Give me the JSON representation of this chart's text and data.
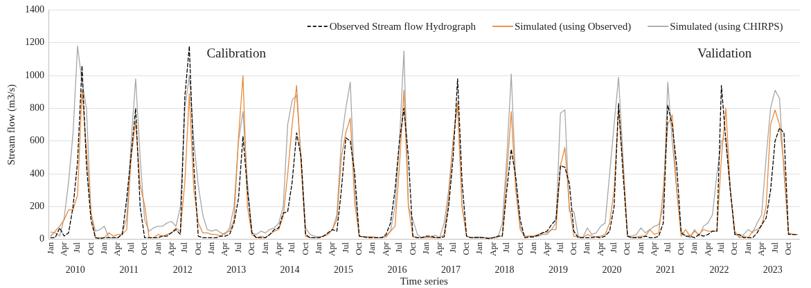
{
  "chart_data": {
    "type": "line",
    "ylabel": "Stream flow (m3/s)",
    "xlabel": "Time series",
    "ylim": [
      0,
      1400
    ],
    "yticks": [
      0,
      200,
      400,
      600,
      800,
      1000,
      1200,
      1400
    ],
    "grid": "y",
    "legend": "top right",
    "categories": [
      "Jan",
      null,
      null,
      "Apr",
      null,
      null,
      "Jul",
      null,
      null,
      "Oct",
      null,
      null,
      "Jan",
      null,
      null,
      "Apr",
      null,
      null,
      "Jul",
      null,
      null,
      "Oct",
      null,
      null,
      "Jan",
      null,
      null,
      "Apr",
      null,
      null,
      "Jul",
      null,
      null,
      "Oct",
      null,
      null,
      "Jan",
      null,
      null,
      "Apr",
      null,
      null,
      "Jul",
      null,
      null,
      "Oct",
      null,
      null,
      "Jan",
      null,
      null,
      "Apr",
      null,
      null,
      "Jul",
      null,
      null,
      "Oct",
      null,
      null,
      "Jan",
      null,
      null,
      "Apr",
      null,
      null,
      "Jul",
      null,
      null,
      "Oct",
      null,
      null,
      "Jan",
      null,
      null,
      "Apr",
      null,
      null,
      "Jul",
      null,
      null,
      "Oct",
      null,
      null,
      "Jan",
      null,
      null,
      "Apr",
      null,
      null,
      "Jul",
      null,
      null,
      "Oct",
      null,
      null,
      "Jan",
      null,
      null,
      "Apr",
      null,
      null,
      "Jul",
      null,
      null,
      "Oct",
      null,
      null,
      "Jan",
      null,
      null,
      "Apr",
      null,
      null,
      "Jul",
      null,
      null,
      "Oct",
      null,
      null,
      "Jan",
      null,
      null,
      "Apr",
      null,
      null,
      "Jul",
      null,
      null,
      "Oct",
      null,
      null,
      "Jan",
      null,
      null,
      "Apr",
      null,
      null,
      "Jul",
      null,
      null,
      "Oct",
      null,
      null,
      "Jan",
      null,
      null,
      "Apr",
      null,
      null,
      "Jul",
      null,
      null,
      "Oct",
      null,
      null,
      "Jan",
      null,
      null,
      "Apr",
      null,
      null,
      "Jul",
      null,
      null,
      "Oct",
      null,
      null
    ],
    "annotations": [
      "Calibration",
      "Validation",
      "2010",
      "2011",
      "2012",
      "2013",
      "2014",
      "2015",
      "2016",
      "2017",
      "2018",
      "2019",
      "2020",
      "2021",
      "2022",
      "2023"
    ],
    "series": [
      {
        "name": "Observed Stream flow Hydrograph",
        "color": "#000000",
        "line_style": "dashed",
        "values": [
          10,
          10,
          70,
          20,
          40,
          200,
          470,
          1060,
          450,
          120,
          10,
          5,
          10,
          10,
          10,
          10,
          30,
          250,
          520,
          800,
          200,
          10,
          10,
          10,
          10,
          20,
          20,
          40,
          60,
          30,
          870,
          1180,
          450,
          20,
          10,
          10,
          10,
          10,
          20,
          20,
          30,
          100,
          250,
          630,
          300,
          40,
          10,
          10,
          10,
          30,
          60,
          70,
          160,
          170,
          350,
          650,
          500,
          30,
          10,
          10,
          10,
          20,
          40,
          60,
          50,
          300,
          620,
          600,
          400,
          20,
          15,
          10,
          10,
          10,
          10,
          30,
          100,
          300,
          600,
          800,
          500,
          20,
          10,
          10,
          20,
          20,
          10,
          10,
          15,
          200,
          500,
          980,
          350,
          20,
          10,
          10,
          10,
          10,
          5,
          10,
          20,
          20,
          300,
          550,
          380,
          120,
          10,
          15,
          15,
          25,
          40,
          50,
          90,
          120,
          450,
          440,
          340,
          50,
          10,
          10,
          10,
          10,
          15,
          10,
          20,
          50,
          200,
          830,
          400,
          20,
          10,
          10,
          10,
          20,
          10,
          10,
          20,
          100,
          820,
          700,
          450,
          40,
          20,
          20,
          10,
          30,
          20,
          30,
          50,
          50,
          940,
          600,
          300,
          30,
          30,
          10,
          10,
          10,
          40,
          90,
          130,
          300,
          600,
          680,
          650,
          30,
          30,
          30
        ]
      },
      {
        "name": "Simulated (using Observed)",
        "color": "#e8893a",
        "line_style": "solid",
        "values": [
          20,
          50,
          80,
          120,
          180,
          180,
          270,
          910,
          550,
          170,
          10,
          10,
          10,
          40,
          20,
          30,
          30,
          60,
          500,
          720,
          330,
          210,
          10,
          10,
          30,
          20,
          30,
          40,
          70,
          50,
          350,
          890,
          300,
          100,
          40,
          40,
          30,
          30,
          20,
          40,
          50,
          120,
          620,
          1000,
          200,
          30,
          10,
          20,
          10,
          30,
          50,
          60,
          140,
          400,
          700,
          940,
          450,
          20,
          10,
          10,
          10,
          20,
          30,
          60,
          120,
          500,
          650,
          740,
          220,
          20,
          15,
          15,
          15,
          10,
          10,
          15,
          50,
          80,
          450,
          910,
          200,
          15,
          10,
          10,
          15,
          10,
          10,
          10,
          30,
          250,
          600,
          840,
          200,
          20,
          10,
          10,
          10,
          10,
          5,
          10,
          20,
          20,
          400,
          780,
          300,
          60,
          15,
          20,
          20,
          30,
          40,
          40,
          60,
          60,
          450,
          560,
          200,
          20,
          15,
          10,
          30,
          20,
          15,
          20,
          30,
          100,
          300,
          800,
          450,
          20,
          10,
          15,
          20,
          20,
          60,
          30,
          40,
          300,
          700,
          760,
          300,
          20,
          60,
          20,
          50,
          30,
          60,
          50,
          50,
          50,
          500,
          800,
          300,
          50,
          10,
          20,
          10,
          50,
          60,
          80,
          200,
          700,
          790,
          700,
          450,
          40,
          30,
          30
        ]
      },
      {
        "name": "Simulated (using CHIRPS)",
        "color": "#a6a6a6",
        "line_style": "solid",
        "values": [
          45,
          40,
          20,
          130,
          350,
          650,
          1180,
          960,
          800,
          160,
          50,
          60,
          80,
          10,
          10,
          10,
          40,
          130,
          600,
          980,
          500,
          120,
          50,
          70,
          80,
          80,
          100,
          110,
          80,
          200,
          800,
          1000,
          600,
          330,
          150,
          60,
          50,
          60,
          40,
          30,
          70,
          200,
          600,
          780,
          350,
          40,
          30,
          50,
          40,
          60,
          70,
          100,
          200,
          700,
          850,
          880,
          500,
          70,
          30,
          20,
          15,
          20,
          30,
          60,
          150,
          600,
          800,
          960,
          300,
          20,
          15,
          15,
          15,
          10,
          10,
          20,
          50,
          200,
          600,
          1150,
          200,
          120,
          30,
          10,
          10,
          15,
          25,
          10,
          100,
          300,
          600,
          820,
          200,
          20,
          10,
          15,
          15,
          10,
          10,
          10,
          10,
          100,
          500,
          1010,
          350,
          80,
          20,
          20,
          20,
          20,
          30,
          30,
          60,
          100,
          770,
          790,
          170,
          170,
          20,
          10,
          70,
          30,
          40,
          80,
          100,
          400,
          700,
          990,
          500,
          20,
          20,
          30,
          70,
          40,
          60,
          80,
          90,
          200,
          960,
          600,
          300,
          50,
          20,
          10,
          60,
          20,
          80,
          100,
          150,
          400,
          600,
          620,
          300,
          30,
          20,
          30,
          60,
          40,
          100,
          150,
          500,
          800,
          910,
          860,
          400,
          40,
          30,
          30
        ]
      }
    ]
  }
}
